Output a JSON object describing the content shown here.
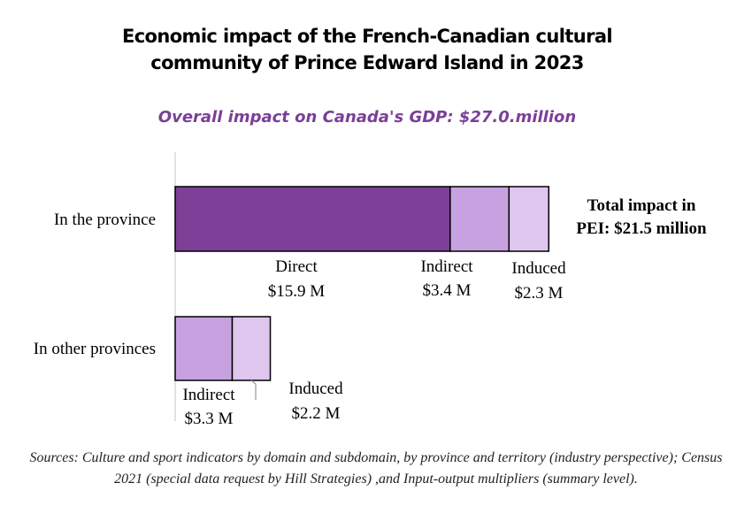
{
  "title_line1": "Economic impact of the French-Canadian cultural",
  "title_line2": "community of Prince Edward Island in 2023",
  "subtitle": "Overall impact on Canada's GDP: $27.0.million",
  "total_line1": "Total impact in",
  "total_line2": "PEI: $21.5 million",
  "sources": "Sources: Culture and sport indicators by domain and subdomain, by province and territory (industry perspective); Census 2021 (special data request by Hill Strategies) ,and Input-output multipliers (summary level).",
  "colors": {
    "direct": "#7E3F98",
    "indirect": "#C8A2E0",
    "induced": "#DEC6EE"
  },
  "chart_data": {
    "type": "bar",
    "orientation": "horizontal",
    "stacked": true,
    "unit": "$ million",
    "categories": [
      "In the province",
      "In other provinces"
    ],
    "series": [
      {
        "name": "Direct",
        "values": [
          15.9,
          0
        ],
        "labels": [
          "$15.9 M",
          ""
        ]
      },
      {
        "name": "Indirect",
        "values": [
          3.4,
          3.3
        ],
        "labels": [
          "$3.4 M",
          "$3.3 M"
        ]
      },
      {
        "name": "Induced",
        "values": [
          2.3,
          2.2
        ],
        "labels": [
          "$2.3 M",
          "$2.2 M"
        ]
      }
    ]
  }
}
